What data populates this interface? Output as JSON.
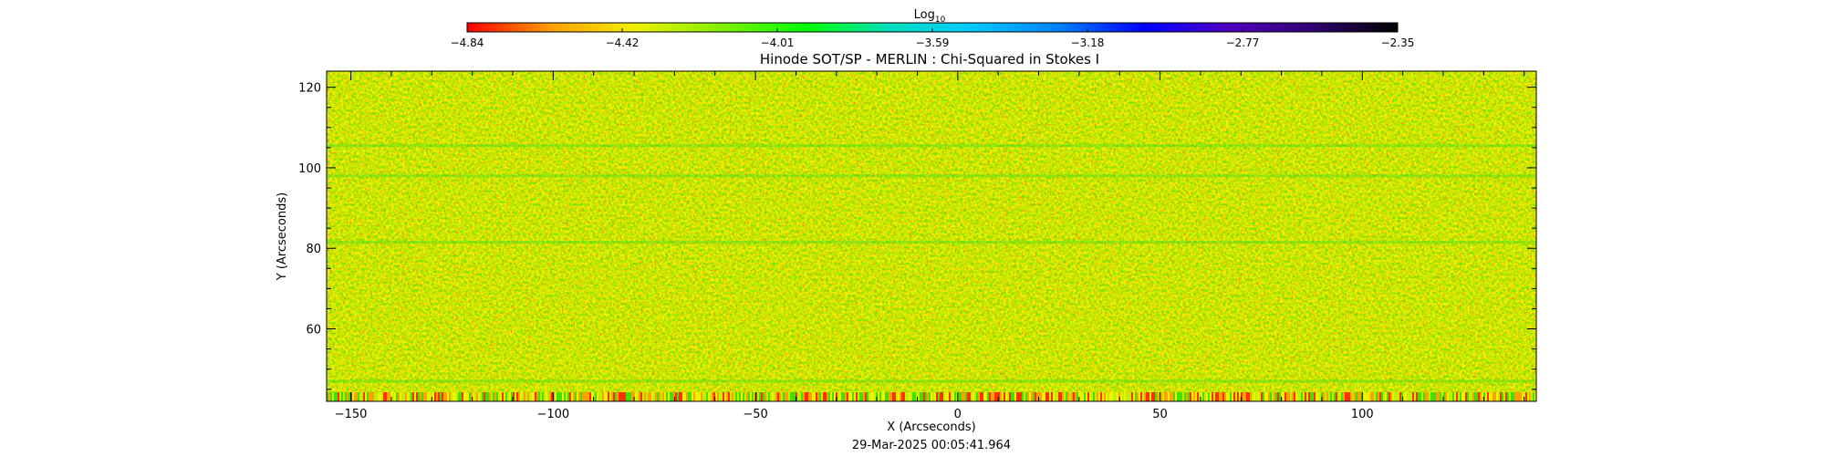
{
  "chart_data": {
    "type": "heatmap",
    "title": "Hinode SOT/SP - MERLIN : Chi-Squared in Stokes I",
    "xlabel": "X (Arcseconds)",
    "ylabel": "Y (Arcseconds)",
    "xlim": [
      -156,
      143
    ],
    "ylim": [
      42,
      124
    ],
    "x_ticks": [
      -150,
      -100,
      -50,
      0,
      50,
      100
    ],
    "x_tick_labels": [
      "−150",
      "−100",
      "−50",
      "0",
      "50",
      "100"
    ],
    "y_ticks": [
      60,
      80,
      100,
      120
    ],
    "y_tick_labels": [
      "60",
      "80",
      "100",
      "120"
    ],
    "colorbar": {
      "title_base": "Log",
      "title_sub": "10",
      "min": -4.84,
      "max": -2.35,
      "tick_labels": [
        "−4.84",
        "−4.42",
        "−4.01",
        "−3.59",
        "−3.18",
        "−2.77",
        "−2.35"
      ],
      "colors": [
        "#ff0000",
        "#ffa000",
        "#f0f000",
        "#80f000",
        "#00ff00",
        "#00e0c0",
        "#00c8ff",
        "#0080ff",
        "#0000ff",
        "#5000c0",
        "#300070",
        "#000000"
      ]
    },
    "value_distribution": "granular pattern dominated by values near −4.2 to −3.8 (yellow to green), with red specks down to −4.84",
    "timestamp": "29-Mar-2025 00:05:41.964"
  }
}
